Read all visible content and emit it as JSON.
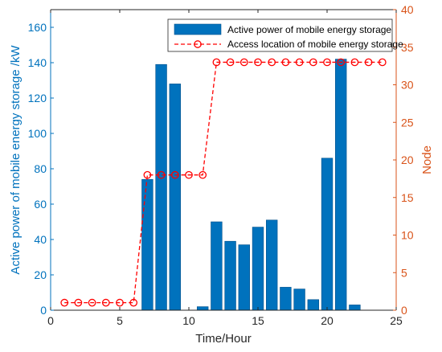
{
  "chart_data": {
    "type": "bar",
    "xlabel": "Time/Hour",
    "ylabel_left": "Active power of mobile energy storage /kW",
    "ylabel_right": "Node",
    "xlim": [
      0,
      25
    ],
    "ylim_left": [
      0,
      170
    ],
    "ylim_right": [
      0,
      40
    ],
    "x_ticks": [
      0,
      5,
      10,
      15,
      20,
      25
    ],
    "y_left_ticks": [
      0,
      20,
      40,
      60,
      80,
      100,
      120,
      140,
      160
    ],
    "y_right_ticks": [
      0,
      5,
      10,
      15,
      20,
      25,
      30,
      35,
      40
    ],
    "grid": false,
    "legend_position": "top-right",
    "series": [
      {
        "name": "Active power of mobile energy storage",
        "type": "bar",
        "axis": "left",
        "color": "#0072BD",
        "x": [
          7,
          8,
          9,
          11,
          12,
          13,
          14,
          15,
          16,
          17,
          18,
          19,
          20,
          21,
          22
        ],
        "values": [
          74,
          139,
          128,
          2,
          50,
          39,
          37,
          47,
          51,
          13,
          12,
          6,
          86,
          142,
          3
        ]
      },
      {
        "name": "Access location of mobile energy storage",
        "type": "line",
        "axis": "right",
        "color": "#FF0000",
        "style": "dashed-circle-markers",
        "x": [
          1,
          2,
          3,
          4,
          5,
          6,
          7,
          8,
          9,
          10,
          11,
          12,
          13,
          14,
          15,
          16,
          17,
          18,
          19,
          20,
          21,
          22,
          23,
          24
        ],
        "values": [
          1,
          1,
          1,
          1,
          1,
          1,
          18,
          18,
          18,
          18,
          18,
          33,
          33,
          33,
          33,
          33,
          33,
          33,
          33,
          33,
          33,
          33,
          33,
          33
        ]
      }
    ],
    "colors": {
      "left_axis": "#0072BD",
      "right_axis": "#D95319"
    }
  }
}
